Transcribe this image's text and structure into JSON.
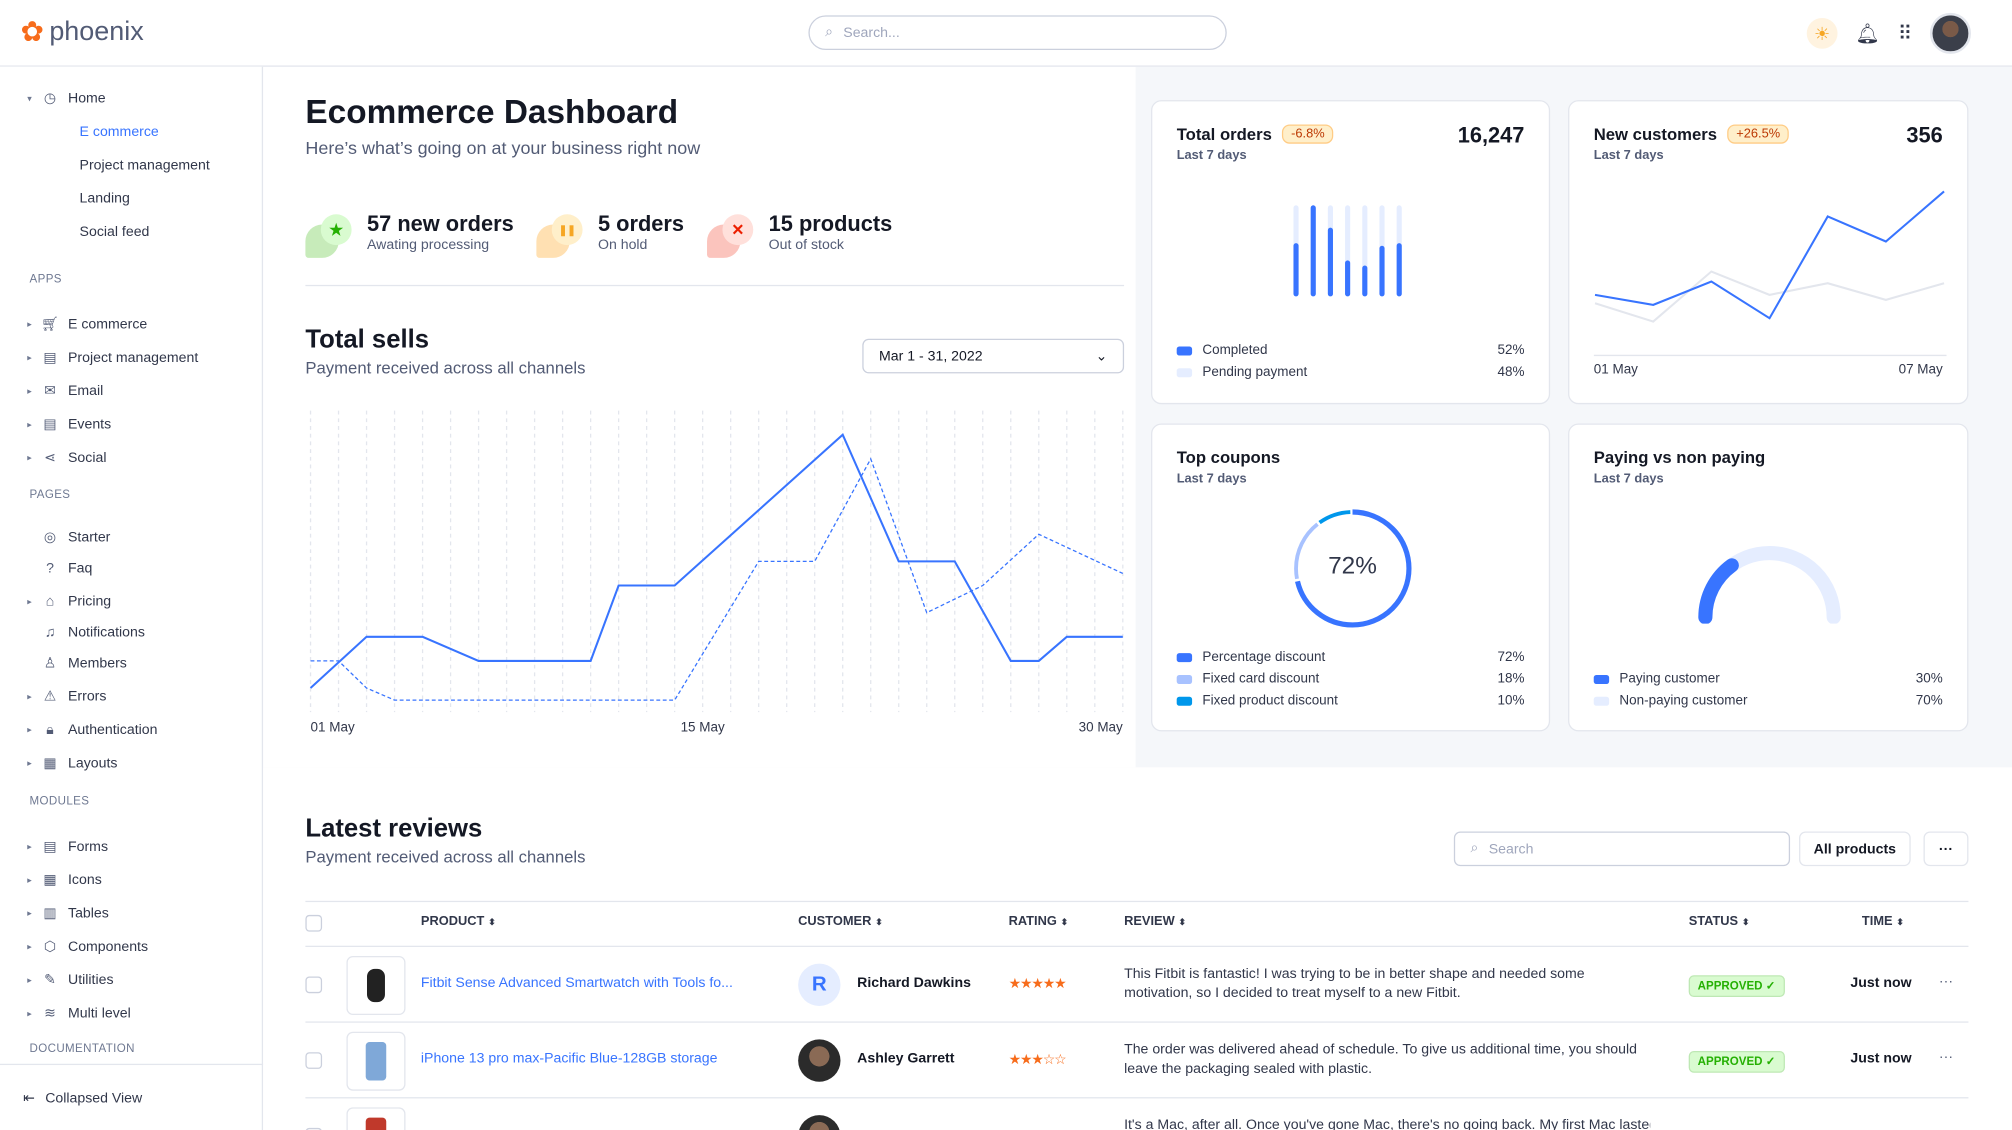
{
  "app": {
    "name": "phoenix",
    "search_placeholder": "Search..."
  },
  "sidebar": {
    "home": {
      "label": "Home",
      "children": [
        "E commerce",
        "Project management",
        "Landing",
        "Social feed"
      ],
      "active": "E commerce"
    },
    "sections": [
      {
        "title": "APPS",
        "items": [
          "E commerce",
          "Project management",
          "Email",
          "Events",
          "Social"
        ]
      },
      {
        "title": "PAGES",
        "items": [
          "Starter",
          "Faq",
          "Pricing",
          "Notifications",
          "Members",
          "Errors",
          "Authentication",
          "Layouts"
        ]
      },
      {
        "title": "MODULES",
        "items": [
          "Forms",
          "Icons",
          "Tables",
          "Components",
          "Utilities",
          "Multi level"
        ]
      },
      {
        "title": "DOCUMENTATION",
        "items": []
      }
    ],
    "collapse_label": "Collapsed View"
  },
  "header": {
    "title": "Ecommerce Dashboard",
    "subtitle": "Here’s what’s going on at your business right now"
  },
  "stats": [
    {
      "title": "57 new orders",
      "sub": "Awating processing",
      "color": "#25b003"
    },
    {
      "title": "5 orders",
      "sub": "On hold",
      "color": "#f6a623"
    },
    {
      "title": "15 products",
      "sub": "Out of stock",
      "color": "#ec1f00"
    }
  ],
  "total_sells": {
    "title": "Total sells",
    "subtitle": "Payment received across all channels",
    "date_range": "Mar 1 - 31, 2022"
  },
  "cards": {
    "total_orders": {
      "title": "Total orders",
      "badge": "-6.8%",
      "sub": "Last 7 days",
      "value": "16,247",
      "legend": [
        {
          "label": "Completed",
          "value": "52%",
          "color": "#3874ff"
        },
        {
          "label": "Pending payment",
          "value": "48%",
          "color": "#e5edff"
        }
      ]
    },
    "new_customers": {
      "title": "New customers",
      "badge": "+26.5%",
      "sub": "Last 7 days",
      "value": "356",
      "x_start": "01 May",
      "x_end": "07 May"
    },
    "top_coupons": {
      "title": "Top coupons",
      "sub": "Last 7 days",
      "center": "72%",
      "legend": [
        {
          "label": "Percentage discount",
          "value": "72%",
          "color": "#3874ff"
        },
        {
          "label": "Fixed card discount",
          "value": "18%",
          "color": "#a8c2ff"
        },
        {
          "label": "Fixed product discount",
          "value": "10%",
          "color": "#0097eb"
        }
      ]
    },
    "paying": {
      "title": "Paying vs non paying",
      "sub": "Last 7 days",
      "legend": [
        {
          "label": "Paying customer",
          "value": "30%",
          "color": "#3874ff"
        },
        {
          "label": "Non-paying customer",
          "value": "70%",
          "color": "#e5edff"
        }
      ]
    }
  },
  "chart_data": [
    {
      "type": "line",
      "title": "Total sells",
      "x_ticks": [
        "01 May",
        "15 May",
        "30 May"
      ],
      "xlim": [
        1,
        30
      ],
      "ylim": [
        0,
        100
      ],
      "grid": "vertical dashed",
      "series": [
        {
          "style": "solid",
          "color": "#3874ff",
          "points": [
            [
              1,
              8
            ],
            [
              3,
              25
            ],
            [
              5,
              25
            ],
            [
              7,
              17
            ],
            [
              11,
              17
            ],
            [
              12,
              42
            ],
            [
              14,
              42
            ],
            [
              20,
              92
            ],
            [
              22,
              50
            ],
            [
              24,
              50
            ],
            [
              26,
              17
            ],
            [
              27,
              17
            ],
            [
              28,
              25
            ],
            [
              30,
              25
            ]
          ]
        },
        {
          "style": "dashed",
          "color": "#3874ff",
          "points": [
            [
              1,
              17
            ],
            [
              2,
              17
            ],
            [
              3,
              8
            ],
            [
              4,
              4
            ],
            [
              14,
              4
            ],
            [
              17,
              50
            ],
            [
              19,
              50
            ],
            [
              21,
              84
            ],
            [
              23,
              33
            ],
            [
              25,
              42
            ],
            [
              27,
              59
            ],
            [
              30,
              46
            ]
          ]
        }
      ]
    },
    {
      "type": "bar",
      "title": "Total orders",
      "categories": [
        1,
        2,
        3,
        4,
        5,
        6,
        7
      ],
      "series": [
        {
          "name": "Completed",
          "values": [
            56,
            100,
            74,
            36,
            30,
            53,
            56
          ]
        },
        {
          "name": "Pending payment",
          "values": [
            44,
            0,
            26,
            64,
            70,
            47,
            44
          ]
        }
      ]
    },
    {
      "type": "line",
      "title": "New customers",
      "categories": [
        "01 May",
        "02 May",
        "03 May",
        "04 May",
        "05 May",
        "06 May",
        "07 May"
      ],
      "ylim": [
        0,
        100
      ],
      "series": [
        {
          "color": "#3874ff",
          "values": [
            34,
            28,
            42,
            20,
            81,
            66,
            96
          ]
        },
        {
          "color": "#e3e6ed",
          "values": [
            29,
            18,
            48,
            34,
            41,
            31,
            41
          ]
        }
      ]
    },
    {
      "type": "pie",
      "title": "Top coupons",
      "values": [
        72,
        18,
        10
      ]
    },
    {
      "type": "pie",
      "title": "Paying vs non paying",
      "values": [
        30,
        70
      ]
    }
  ],
  "reviews": {
    "title": "Latest reviews",
    "subtitle": "Payment received across all channels",
    "search_placeholder": "Search",
    "filter": "All products",
    "more": "···",
    "columns": [
      "PRODUCT",
      "CUSTOMER",
      "RATING",
      "REVIEW",
      "STATUS",
      "TIME"
    ],
    "rows": [
      {
        "product": "Fitbit Sense Advanced Smartwatch with Tools fo...",
        "customer": "Richard Dawkins",
        "initial": "R",
        "rating": 5,
        "stars": "★★★★★",
        "review": "This Fitbit is fantastic! I was trying to be in better shape and needed some motivation, so I decided to treat myself to a new Fitbit.",
        "status": "APPROVED ✓",
        "time": "Just now"
      },
      {
        "product": "iPhone 13 pro max-Pacific Blue-128GB storage",
        "customer": "Ashley Garrett",
        "rating": 3,
        "stars": "★★★☆☆",
        "review": "The order was delivered ahead of schedule. To give us additional time, you should leave the packaging sealed with plastic.",
        "status": "APPROVED ✓",
        "time": "Just now"
      },
      {
        "review": "It's a Mac, after all. Once you've gone Mac, there's no going back. My first Mac lasted"
      }
    ]
  }
}
